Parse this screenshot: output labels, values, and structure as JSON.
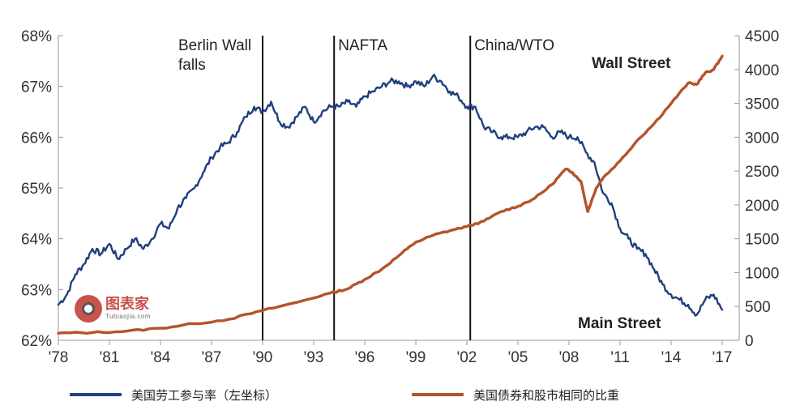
{
  "chart_data": {
    "type": "line",
    "left_axis": {
      "ticks": [
        "62%",
        "63%",
        "64%",
        "65%",
        "66%",
        "67%",
        "68%"
      ],
      "range": [
        62,
        68
      ]
    },
    "right_axis": {
      "ticks": [
        "0",
        "500",
        "1000",
        "1500",
        "2000",
        "2500",
        "3000",
        "3500",
        "4000",
        "4500"
      ],
      "range": [
        0,
        4500
      ]
    },
    "x_axis": {
      "ticks": [
        "'78",
        "'81",
        "'84",
        "'87",
        "'90",
        "'93",
        "'96",
        "'99",
        "'02",
        "'05",
        "'08",
        "'11",
        "'14",
        "'17"
      ],
      "range": [
        1978,
        2018
      ]
    },
    "events": [
      {
        "x": 1990,
        "label_lines": [
          "Berlin Wall",
          "falls"
        ]
      },
      {
        "x": 1994.2,
        "label_lines": [
          "NAFTA"
        ]
      },
      {
        "x": 2002.2,
        "label_lines": [
          "China/WTO"
        ]
      }
    ],
    "annotations": {
      "wall_street": "Wall Street",
      "main_street": "Main Street"
    },
    "series": [
      {
        "name": "美国劳工参与率（左坐标）",
        "axis": "left",
        "color": "#1f3f7f",
        "points": [
          [
            1978.0,
            62.7
          ],
          [
            1978.5,
            62.9
          ],
          [
            1979.0,
            63.3
          ],
          [
            1979.5,
            63.5
          ],
          [
            1980.0,
            63.8
          ],
          [
            1980.5,
            63.7
          ],
          [
            1981.0,
            63.9
          ],
          [
            1981.5,
            63.6
          ],
          [
            1982.0,
            63.8
          ],
          [
            1982.5,
            64.0
          ],
          [
            1983.0,
            63.8
          ],
          [
            1983.5,
            64.0
          ],
          [
            1984.0,
            64.3
          ],
          [
            1984.5,
            64.2
          ],
          [
            1985.0,
            64.6
          ],
          [
            1985.5,
            64.8
          ],
          [
            1986.0,
            65.0
          ],
          [
            1986.5,
            65.3
          ],
          [
            1987.0,
            65.6
          ],
          [
            1987.5,
            65.8
          ],
          [
            1988.0,
            65.9
          ],
          [
            1988.5,
            66.1
          ],
          [
            1989.0,
            66.4
          ],
          [
            1989.5,
            66.6
          ],
          [
            1990.0,
            66.5
          ],
          [
            1990.5,
            66.7
          ],
          [
            1991.0,
            66.3
          ],
          [
            1991.5,
            66.2
          ],
          [
            1992.0,
            66.4
          ],
          [
            1992.5,
            66.6
          ],
          [
            1993.0,
            66.3
          ],
          [
            1993.5,
            66.5
          ],
          [
            1994.0,
            66.6
          ],
          [
            1994.5,
            66.6
          ],
          [
            1995.0,
            66.7
          ],
          [
            1995.5,
            66.6
          ],
          [
            1996.0,
            66.8
          ],
          [
            1996.5,
            66.9
          ],
          [
            1997.0,
            67.0
          ],
          [
            1997.5,
            67.1
          ],
          [
            1998.0,
            67.1
          ],
          [
            1998.5,
            67.0
          ],
          [
            1999.0,
            67.1
          ],
          [
            1999.5,
            67.0
          ],
          [
            2000.0,
            67.2
          ],
          [
            2000.5,
            67.1
          ],
          [
            2001.0,
            66.9
          ],
          [
            2001.5,
            66.8
          ],
          [
            2002.0,
            66.6
          ],
          [
            2002.5,
            66.6
          ],
          [
            2003.0,
            66.2
          ],
          [
            2003.5,
            66.1
          ],
          [
            2004.0,
            66.0
          ],
          [
            2004.5,
            66.0
          ],
          [
            2005.0,
            66.0
          ],
          [
            2005.5,
            66.1
          ],
          [
            2006.0,
            66.2
          ],
          [
            2006.5,
            66.2
          ],
          [
            2007.0,
            66.0
          ],
          [
            2007.5,
            66.1
          ],
          [
            2008.0,
            66.0
          ],
          [
            2008.5,
            66.0
          ],
          [
            2009.0,
            65.7
          ],
          [
            2009.5,
            65.5
          ],
          [
            2010.0,
            64.9
          ],
          [
            2010.5,
            64.7
          ],
          [
            2011.0,
            64.2
          ],
          [
            2011.5,
            64.0
          ],
          [
            2012.0,
            63.8
          ],
          [
            2012.5,
            63.7
          ],
          [
            2013.0,
            63.4
          ],
          [
            2013.5,
            63.1
          ],
          [
            2014.0,
            62.9
          ],
          [
            2014.5,
            62.8
          ],
          [
            2015.0,
            62.7
          ],
          [
            2015.5,
            62.5
          ],
          [
            2016.0,
            62.8
          ],
          [
            2016.5,
            62.9
          ],
          [
            2017.0,
            62.6
          ]
        ]
      },
      {
        "name": "美国债券和股市相同的比重",
        "axis": "right",
        "color": "#b5532a",
        "points": [
          [
            1978.0,
            105
          ],
          [
            1980.0,
            115
          ],
          [
            1982.0,
            135
          ],
          [
            1984.0,
            180
          ],
          [
            1986.0,
            245
          ],
          [
            1988.0,
            310
          ],
          [
            1990.0,
            440
          ],
          [
            1992.0,
            560
          ],
          [
            1994.0,
            700
          ],
          [
            1995.0,
            760
          ],
          [
            1996.0,
            900
          ],
          [
            1997.0,
            1050
          ],
          [
            1998.0,
            1250
          ],
          [
            1999.0,
            1450
          ],
          [
            2000.0,
            1550
          ],
          [
            2001.0,
            1620
          ],
          [
            2002.0,
            1680
          ],
          [
            2003.0,
            1760
          ],
          [
            2004.0,
            1900
          ],
          [
            2005.0,
            1980
          ],
          [
            2006.0,
            2100
          ],
          [
            2007.0,
            2300
          ],
          [
            2007.8,
            2530
          ],
          [
            2008.2,
            2480
          ],
          [
            2008.7,
            2350
          ],
          [
            2009.1,
            1900
          ],
          [
            2009.6,
            2250
          ],
          [
            2010.0,
            2400
          ],
          [
            2011.0,
            2650
          ],
          [
            2012.0,
            2950
          ],
          [
            2013.0,
            3200
          ],
          [
            2014.0,
            3500
          ],
          [
            2015.0,
            3800
          ],
          [
            2015.5,
            3780
          ],
          [
            2016.0,
            3950
          ],
          [
            2016.5,
            4000
          ],
          [
            2017.0,
            4200
          ]
        ]
      }
    ]
  },
  "legend": {
    "series1": "美国劳工参与率（左坐标）",
    "series2": "美国债券和股市相同的比重"
  },
  "watermark": {
    "title": "图表家",
    "subtitle": "Tubiaojia.com"
  }
}
